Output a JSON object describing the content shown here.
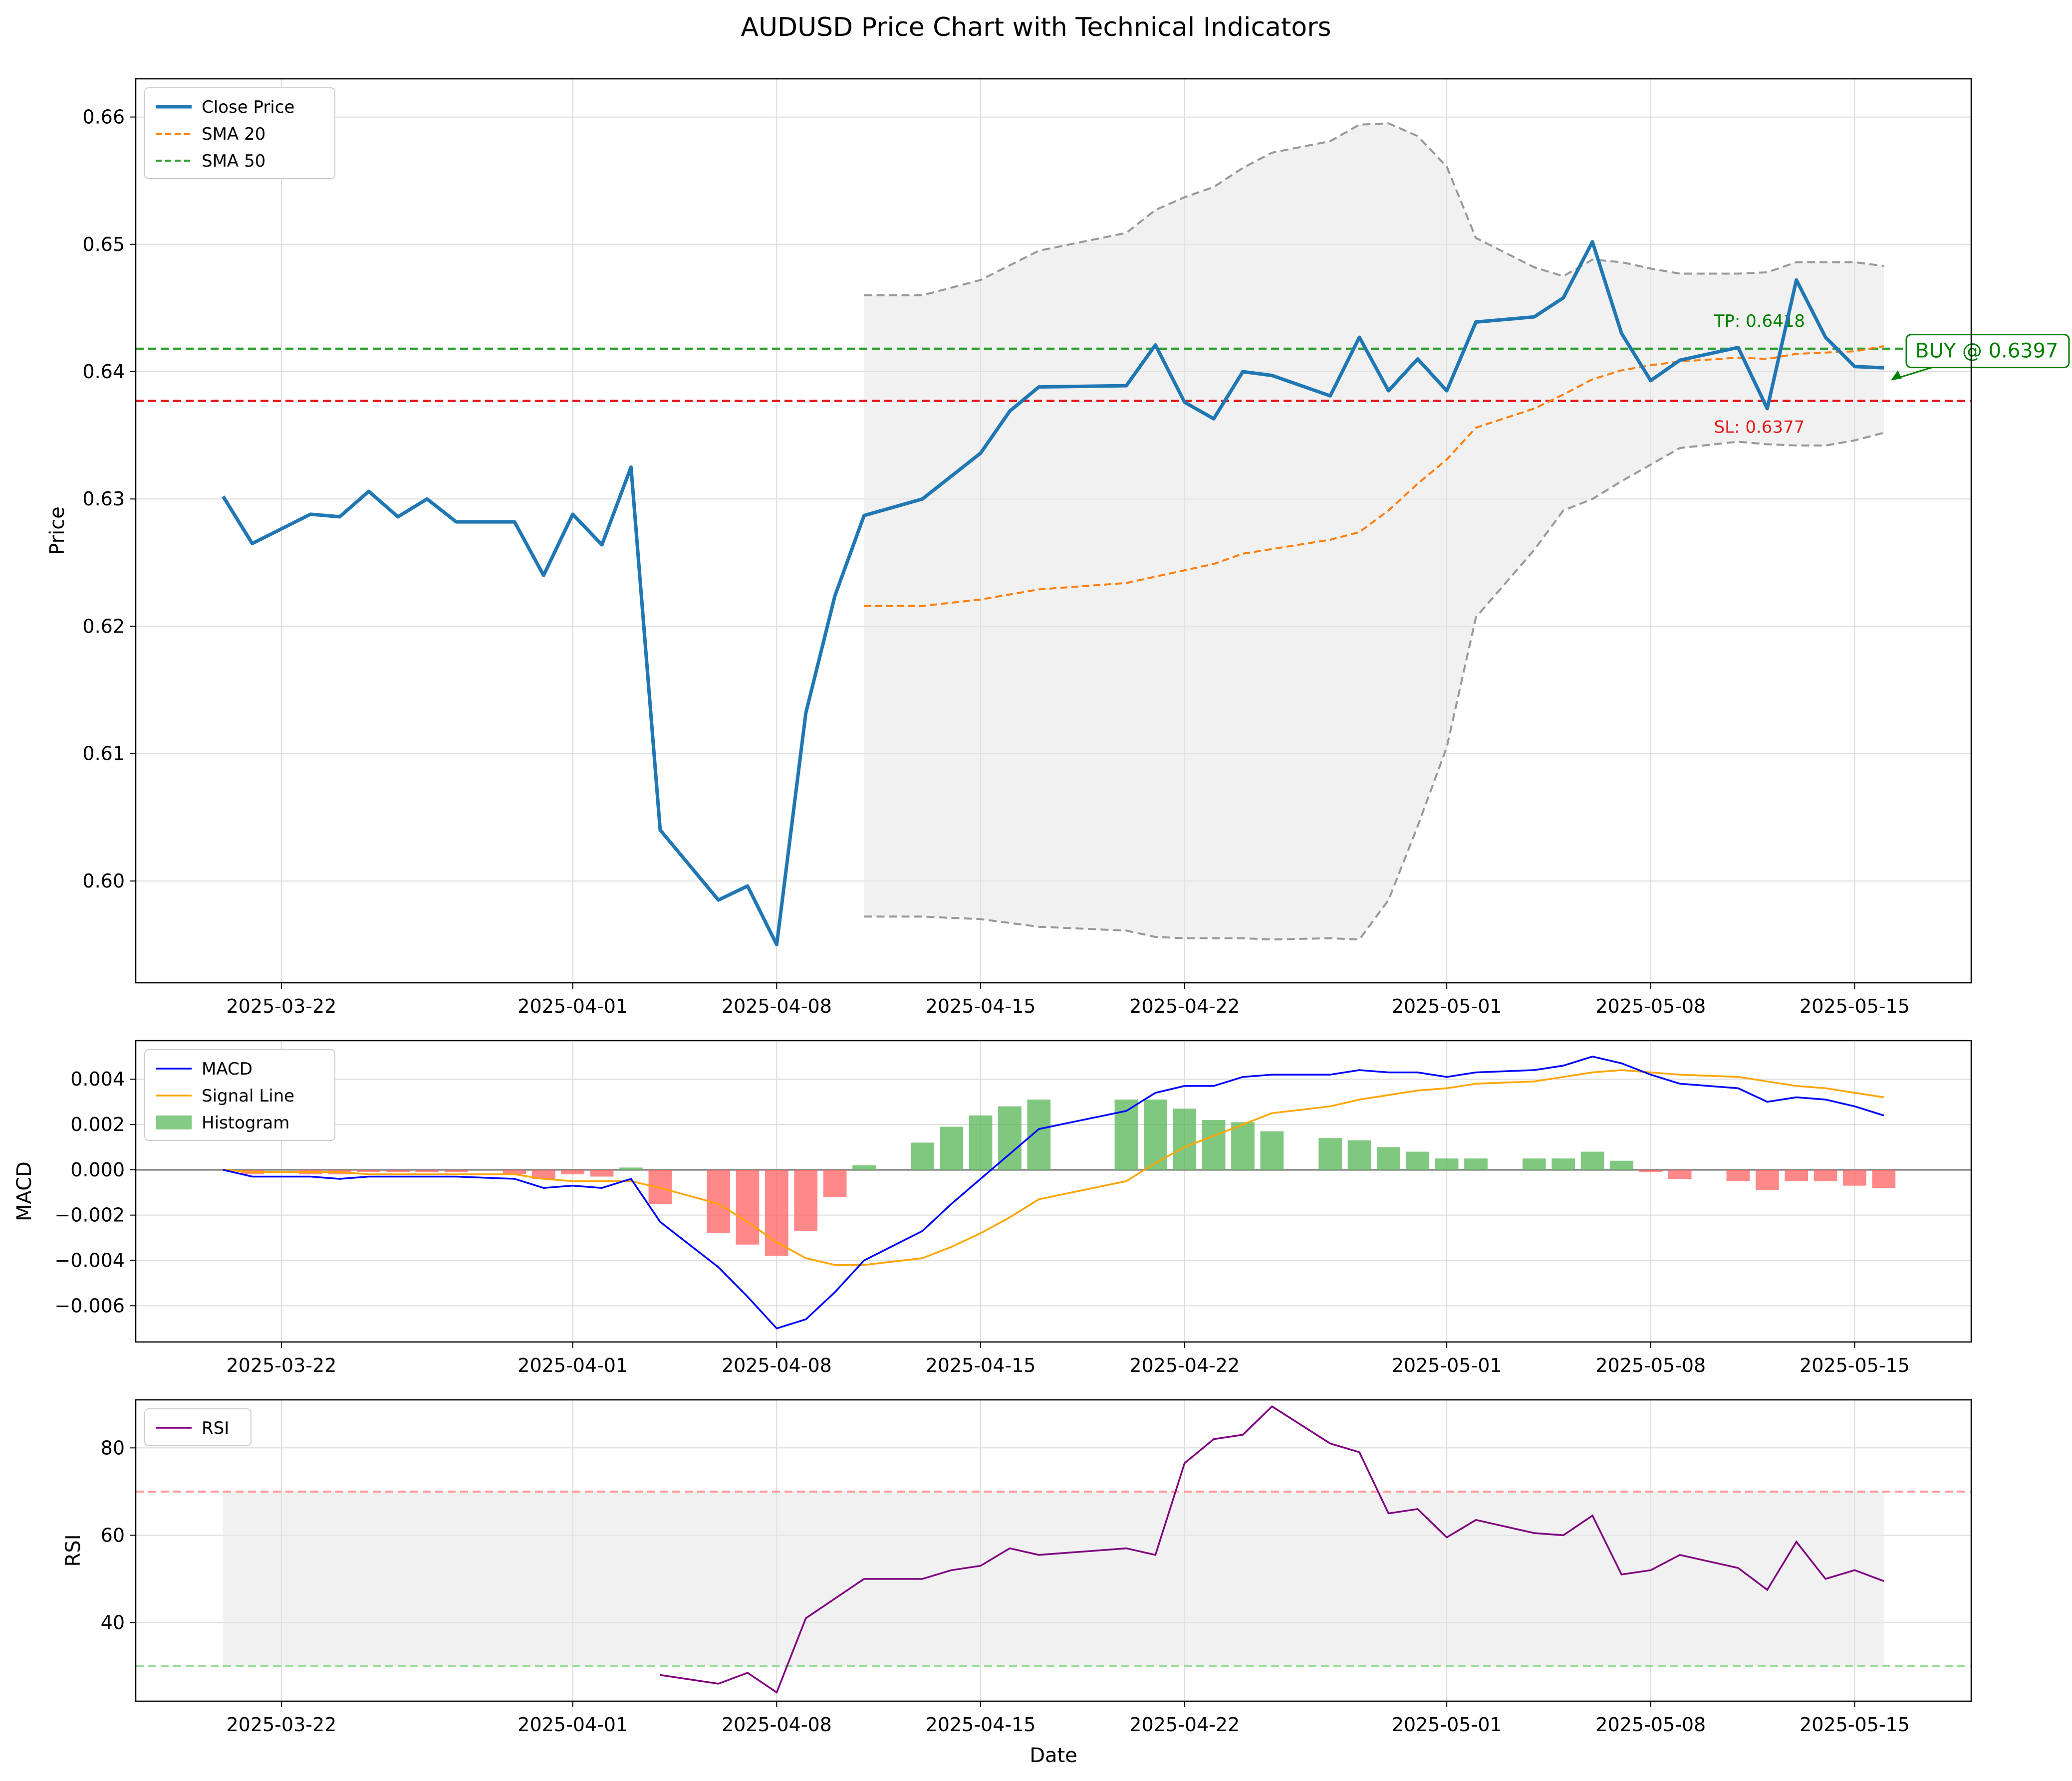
{
  "title": "AUDUSD Price Chart with Technical Indicators",
  "colors": {
    "close": "#1f77b4",
    "sma20": "#ff7f0e",
    "sma50": "#2ca02c",
    "tp": "#2ca02c",
    "sl": "#e41a1c",
    "band": "#999999",
    "band_fill": "#e6e6e6",
    "macd": "#0000ff",
    "signal": "#ffa500",
    "hist_pos": "#5cb85c",
    "hist_neg": "#ff6666",
    "rsi": "#800080",
    "overbought": "#ff9999",
    "oversold": "#99dd99",
    "annot": "#008000"
  },
  "chart_data": [
    {
      "type": "line",
      "name": "price",
      "ylabel": "Price",
      "xlabel": "",
      "ylim": [
        0.592,
        0.663
      ],
      "xlim": [
        "2025-03-17",
        "2025-05-19"
      ],
      "yticks": [
        "0.60",
        "0.61",
        "0.62",
        "0.63",
        "0.64",
        "0.65",
        "0.66"
      ],
      "ytick_values": [
        0.6,
        0.61,
        0.62,
        0.63,
        0.64,
        0.65,
        0.66
      ],
      "xticks": [
        "2025-03-22",
        "2025-04-01",
        "2025-04-08",
        "2025-04-15",
        "2025-04-22",
        "2025-05-01",
        "2025-05-08",
        "2025-05-15"
      ],
      "grid": true,
      "legend": {
        "placement": "top-left",
        "entries": [
          "Close Price",
          "SMA 20",
          "SMA 50"
        ]
      },
      "dates": [
        "2025-03-20",
        "2025-03-21",
        "2025-03-24",
        "2025-03-25",
        "2025-03-26",
        "2025-03-27",
        "2025-03-28",
        "2025-03-31",
        "2025-04-01",
        "2025-04-02",
        "2025-04-03",
        "2025-04-04",
        "2025-04-07",
        "2025-04-08",
        "2025-04-09",
        "2025-04-10",
        "2025-04-11",
        "2025-04-14",
        "2025-04-15",
        "2025-04-16",
        "2025-04-17",
        "2025-04-21",
        "2025-04-22",
        "2025-04-23",
        "2025-04-24",
        "2025-04-25",
        "2025-04-28",
        "2025-04-29",
        "2025-04-30",
        "2025-05-01",
        "2025-05-02",
        "2025-05-05",
        "2025-05-06",
        "2025-05-07",
        "2025-05-08",
        "2025-05-09",
        "2025-05-12",
        "2025-05-13",
        "2025-05-14",
        "2025-05-15",
        "2025-05-16"
      ],
      "dates_note": "",
      "series": [
        {
          "name": "Close Price",
          "style": "solid",
          "x": [
            "2025-03-20",
            "2025-03-21",
            "2025-03-23",
            "2025-03-24",
            "2025-03-25",
            "2025-03-26",
            "2025-03-27",
            "2025-03-28",
            "2025-03-30",
            "2025-03-31",
            "2025-04-01",
            "2025-04-02",
            "2025-04-03",
            "2025-04-04",
            "2025-04-06",
            "2025-04-07",
            "2025-04-08",
            "2025-04-09",
            "2025-04-10",
            "2025-04-11",
            "2025-04-13",
            "2025-04-15",
            "2025-04-16",
            "2025-04-17",
            "2025-04-20",
            "2025-04-21",
            "2025-04-22",
            "2025-04-23",
            "2025-04-24",
            "2025-04-25",
            "2025-04-27",
            "2025-04-28",
            "2025-04-29",
            "2025-04-30",
            "2025-05-01",
            "2025-05-02",
            "2025-05-04",
            "2025-05-05",
            "2025-05-06",
            "2025-05-07",
            "2025-05-08",
            "2025-05-09",
            "2025-05-11",
            "2025-05-12",
            "2025-05-13",
            "2025-05-14",
            "2025-05-15",
            "2025-05-16"
          ],
          "y": [
            0.6302,
            0.6265,
            0.6288,
            0.6286,
            0.6306,
            0.6286,
            0.63,
            0.6282,
            0.6282,
            0.624,
            0.6288,
            0.6264,
            0.6325,
            0.604,
            0.5985,
            0.5996,
            0.595,
            0.6132,
            0.6224,
            0.6287,
            0.63,
            0.6336,
            0.6369,
            0.6388,
            0.6389,
            0.6421,
            0.6376,
            0.6363,
            0.64,
            0.6397,
            0.6381,
            0.6427,
            0.6385,
            0.641,
            0.6385,
            0.6439,
            0.6443,
            0.6458,
            0.6502,
            0.643,
            0.6393,
            0.6409,
            0.6419,
            0.6371,
            0.6472,
            0.6427,
            0.6404,
            0.6403
          ]
        },
        {
          "name": "SMA 20",
          "style": "dashed",
          "x": [
            "2025-04-11",
            "2025-04-13",
            "2025-04-15",
            "2025-04-17",
            "2025-04-20",
            "2025-04-22",
            "2025-04-23",
            "2025-04-24",
            "2025-04-27",
            "2025-04-28",
            "2025-04-29",
            "2025-04-30",
            "2025-05-01",
            "2025-05-02",
            "2025-05-04",
            "2025-05-05",
            "2025-05-06",
            "2025-05-07",
            "2025-05-08",
            "2025-05-09",
            "2025-05-11",
            "2025-05-12",
            "2025-05-13",
            "2025-05-14",
            "2025-05-15",
            "2025-05-16"
          ],
          "y": [
            0.6216,
            0.6216,
            0.6221,
            0.6229,
            0.6234,
            0.6244,
            0.6249,
            0.6257,
            0.6268,
            0.6274,
            0.6291,
            0.6312,
            0.6331,
            0.6356,
            0.6371,
            0.6382,
            0.6394,
            0.6401,
            0.6405,
            0.6408,
            0.6411,
            0.641,
            0.6414,
            0.6415,
            0.6416,
            0.642
          ]
        },
        {
          "name": "SMA 50",
          "style": "dashed",
          "x": [],
          "y": []
        }
      ],
      "bands": {
        "x": [
          "2025-04-11",
          "2025-04-13",
          "2025-04-15",
          "2025-04-17",
          "2025-04-20",
          "2025-04-21",
          "2025-04-22",
          "2025-04-23",
          "2025-04-24",
          "2025-04-25",
          "2025-04-27",
          "2025-04-28",
          "2025-04-29",
          "2025-04-30",
          "2025-05-01",
          "2025-05-02",
          "2025-05-04",
          "2025-05-05",
          "2025-05-06",
          "2025-05-07",
          "2025-05-08",
          "2025-05-09",
          "2025-05-11",
          "2025-05-12",
          "2025-05-13",
          "2025-05-14",
          "2025-05-15",
          "2025-05-16"
        ],
        "upper": [
          0.646,
          0.646,
          0.6472,
          0.6495,
          0.6509,
          0.6527,
          0.6537,
          0.6545,
          0.656,
          0.6572,
          0.6581,
          0.6594,
          0.6595,
          0.6585,
          0.6561,
          0.6505,
          0.6482,
          0.6475,
          0.6488,
          0.6486,
          0.6481,
          0.6477,
          0.6477,
          0.6478,
          0.6486,
          0.6486,
          0.6486,
          0.6483
        ],
        "lower": [
          0.5972,
          0.5972,
          0.597,
          0.5964,
          0.5961,
          0.5956,
          0.5955,
          0.5955,
          0.5955,
          0.5954,
          0.5955,
          0.5954,
          0.5985,
          0.6043,
          0.6105,
          0.6207,
          0.626,
          0.6291,
          0.63,
          0.6314,
          0.6327,
          0.634,
          0.6345,
          0.6343,
          0.6342,
          0.6342,
          0.6346,
          0.6352
        ]
      },
      "hlines": [
        {
          "name": "TP",
          "value": 0.6418,
          "label": "TP: 0.6418"
        },
        {
          "name": "SL",
          "value": 0.6377,
          "label": "SL: 0.6377"
        }
      ],
      "annotation": {
        "text": "BUY @ 0.6397",
        "x": "2025-05-16",
        "y": 0.6397
      }
    },
    {
      "type": "bar",
      "name": "macd",
      "ylabel": "MACD",
      "ylim": [
        -0.0076,
        0.0057
      ],
      "yticks": [
        "−0.006",
        "−0.004",
        "−0.002",
        "0.000",
        "0.002",
        "0.004"
      ],
      "ytick_values": [
        -0.006,
        -0.004,
        -0.002,
        0,
        0.002,
        0.004
      ],
      "xticks": [
        "2025-03-22",
        "2025-04-01",
        "2025-04-08",
        "2025-04-15",
        "2025-04-22",
        "2025-05-01",
        "2025-05-08",
        "2025-05-15"
      ],
      "grid": true,
      "legend": {
        "placement": "top-left",
        "entries": [
          "MACD",
          "Signal Line",
          "Histogram"
        ]
      },
      "x": [
        "2025-03-20",
        "2025-03-21",
        "2025-03-23",
        "2025-03-24",
        "2025-03-25",
        "2025-03-26",
        "2025-03-27",
        "2025-03-28",
        "2025-03-30",
        "2025-03-31",
        "2025-04-01",
        "2025-04-02",
        "2025-04-03",
        "2025-04-04",
        "2025-04-06",
        "2025-04-07",
        "2025-04-08",
        "2025-04-09",
        "2025-04-10",
        "2025-04-11",
        "2025-04-13",
        "2025-04-14",
        "2025-04-15",
        "2025-04-16",
        "2025-04-17",
        "2025-04-20",
        "2025-04-21",
        "2025-04-22",
        "2025-04-23",
        "2025-04-24",
        "2025-04-25",
        "2025-04-27",
        "2025-04-28",
        "2025-04-29",
        "2025-04-30",
        "2025-05-01",
        "2025-05-02",
        "2025-05-04",
        "2025-05-05",
        "2025-05-06",
        "2025-05-07",
        "2025-05-08",
        "2025-05-09",
        "2025-05-11",
        "2025-05-12",
        "2025-05-13",
        "2025-05-14",
        "2025-05-15",
        "2025-05-16"
      ],
      "series": [
        {
          "name": "MACD",
          "values": [
            0.0,
            -0.0003,
            -0.0003,
            -0.0004,
            -0.0003,
            -0.0003,
            -0.0003,
            -0.0003,
            -0.0004,
            -0.0008,
            -0.0007,
            -0.0008,
            -0.0004,
            -0.0023,
            -0.0043,
            -0.0056,
            -0.007,
            -0.0066,
            -0.0054,
            -0.004,
            -0.0027,
            -0.0015,
            -0.0004,
            0.0007,
            0.0018,
            0.0026,
            0.0034,
            0.0037,
            0.0037,
            0.0041,
            0.0042,
            0.0042,
            0.0044,
            0.0043,
            0.0043,
            0.0041,
            0.0043,
            0.0044,
            0.0046,
            0.005,
            0.0047,
            0.0042,
            0.0038,
            0.0036,
            0.003,
            0.0032,
            0.0031,
            0.0028,
            0.0024
          ]
        },
        {
          "name": "Signal Line",
          "values": [
            0.0,
            -0.0001,
            -0.0001,
            -0.0001,
            -0.0002,
            -0.0002,
            -0.0002,
            -0.0002,
            -0.0002,
            -0.0004,
            -0.0005,
            -0.0005,
            -0.0005,
            -0.0008,
            -0.0015,
            -0.0023,
            -0.0032,
            -0.0039,
            -0.0042,
            -0.0042,
            -0.0039,
            -0.0034,
            -0.0028,
            -0.0021,
            -0.0013,
            -0.0005,
            0.0003,
            0.001,
            0.0015,
            0.002,
            0.0025,
            0.0028,
            0.0031,
            0.0033,
            0.0035,
            0.0036,
            0.0038,
            0.0039,
            0.0041,
            0.0043,
            0.0044,
            0.0043,
            0.0042,
            0.0041,
            0.0039,
            0.0037,
            0.0036,
            0.0034,
            0.0032
          ]
        },
        {
          "name": "Histogram",
          "values": [
            0.0,
            -0.0002,
            -0.0002,
            -0.0002,
            -0.0001,
            -0.0001,
            -0.0001,
            -0.0001,
            -0.0002,
            -0.0004,
            -0.0002,
            -0.0003,
            0.0001,
            -0.0015,
            -0.0028,
            -0.0033,
            -0.0038,
            -0.0027,
            -0.0012,
            0.0002,
            0.0012,
            0.0019,
            0.0024,
            0.0028,
            0.0031,
            0.0031,
            0.0031,
            0.0027,
            0.0022,
            0.0021,
            0.0017,
            0.0014,
            0.0013,
            0.001,
            0.0008,
            0.0005,
            0.0005,
            0.0005,
            0.0005,
            0.0008,
            0.0004,
            -0.0001,
            -0.0004,
            -0.0005,
            -0.0009,
            -0.0005,
            -0.0005,
            -0.0007,
            -0.0008
          ]
        }
      ]
    },
    {
      "type": "line",
      "name": "rsi",
      "ylabel": "RSI",
      "xlabel": "Date",
      "ylim": [
        22,
        91
      ],
      "yticks": [
        "40",
        "60",
        "80"
      ],
      "ytick_values": [
        40,
        60,
        80
      ],
      "xticks": [
        "2025-03-22",
        "2025-04-01",
        "2025-04-08",
        "2025-04-15",
        "2025-04-22",
        "2025-05-01",
        "2025-05-08",
        "2025-05-15"
      ],
      "grid": true,
      "legend": {
        "placement": "top-left",
        "entries": [
          "RSI"
        ]
      },
      "levels": {
        "overbought": 70,
        "oversold": 30
      },
      "fill_range": [
        "2025-03-20",
        "2025-05-16"
      ],
      "series": [
        {
          "name": "RSI",
          "x": [
            "2025-04-04",
            "2025-04-06",
            "2025-04-07",
            "2025-04-08",
            "2025-04-09",
            "2025-04-11",
            "2025-04-13",
            "2025-04-14",
            "2025-04-15",
            "2025-04-16",
            "2025-04-17",
            "2025-04-20",
            "2025-04-21",
            "2025-04-22",
            "2025-04-23",
            "2025-04-24",
            "2025-04-25",
            "2025-04-27",
            "2025-04-28",
            "2025-04-29",
            "2025-04-30",
            "2025-05-01",
            "2025-05-02",
            "2025-05-04",
            "2025-05-05",
            "2025-05-06",
            "2025-05-07",
            "2025-05-08",
            "2025-05-09",
            "2025-05-11",
            "2025-05-12",
            "2025-05-13",
            "2025-05-14",
            "2025-05-15",
            "2025-05-16"
          ],
          "values": [
            28,
            26,
            28.5,
            24,
            41,
            50,
            50,
            52,
            53,
            57,
            55.5,
            57,
            55.5,
            76.5,
            82,
            83,
            89.5,
            81,
            79,
            65,
            66,
            59.5,
            63.5,
            60.5,
            60,
            64.5,
            51,
            52,
            55.5,
            52.5,
            47.5,
            58.5,
            50,
            52,
            49.5
          ]
        }
      ]
    }
  ]
}
